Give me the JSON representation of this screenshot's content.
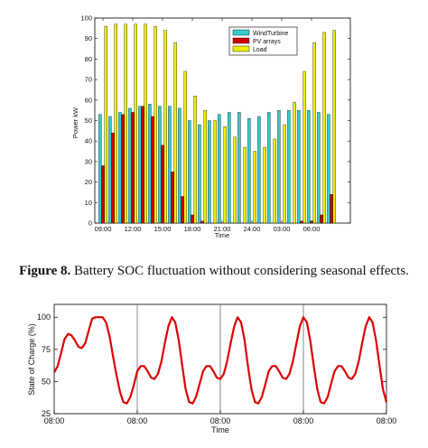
{
  "caption": {
    "label": "Figure  8.",
    "text": " Battery SOC fluctuation without considering seasonal effects."
  },
  "chart_data": [
    {
      "type": "bar",
      "title": "",
      "xlabel": "Time",
      "ylabel": "Power   kW",
      "ylim": [
        0,
        100
      ],
      "yticks": [
        0,
        10,
        20,
        30,
        40,
        50,
        60,
        70,
        80,
        90,
        100
      ],
      "xtick_labels": [
        "09:00",
        "12:00",
        "15:00",
        "18:00",
        "21:00",
        "24:00",
        "03:00",
        "06:00"
      ],
      "xtick_hours": [
        0,
        3,
        6,
        9,
        12,
        15,
        18,
        21
      ],
      "grid": false,
      "legend": "top-right",
      "colors": {
        "wind": "#33cccc",
        "pv": "#cc0000",
        "load": "#eeee00"
      },
      "series": [
        {
          "name": "WindTurbine",
          "values": [
            53,
            52,
            54,
            56,
            57,
            58,
            57,
            57,
            56,
            50,
            48,
            50,
            53,
            54,
            54,
            51,
            52,
            54,
            55,
            55,
            55,
            55,
            54,
            53
          ]
        },
        {
          "name": "PV arrays",
          "values": [
            28,
            44,
            53,
            54,
            57,
            52,
            38,
            25,
            13,
            4,
            1,
            0,
            0,
            0,
            0,
            0,
            0,
            0,
            0,
            0,
            1,
            1,
            4,
            14
          ]
        },
        {
          "name": "Load",
          "values": [
            96,
            97,
            97,
            97,
            97,
            96,
            94,
            88,
            74,
            62,
            55,
            50,
            47,
            42,
            37,
            35,
            37,
            41,
            48,
            59,
            74,
            88,
            93,
            94
          ]
        }
      ]
    },
    {
      "type": "line",
      "title": "",
      "xlabel": "Time",
      "ylabel": "State of Charge (%)",
      "ylim": [
        25,
        110
      ],
      "yticks": [
        25,
        50,
        75,
        100
      ],
      "xtick_labels": [
        "08:00",
        "08:00",
        "08:00",
        "08:00",
        "08:00"
      ],
      "xtick_days": [
        0,
        1,
        2,
        3,
        4
      ],
      "grid": false,
      "color": "#dd0000",
      "x_days": [
        0,
        0.042,
        0.083,
        0.125,
        0.167,
        0.208,
        0.25,
        0.292,
        0.333,
        0.375,
        0.417,
        0.458,
        0.5,
        0.542,
        0.583,
        0.625,
        0.667,
        0.708,
        0.75,
        0.792,
        0.833,
        0.875,
        0.917,
        0.958,
        1.0,
        1.042,
        1.083,
        1.125,
        1.167,
        1.208,
        1.25,
        1.292,
        1.333,
        1.375,
        1.417,
        1.458,
        1.5,
        1.542,
        1.583,
        1.625,
        1.667,
        1.708,
        1.75,
        1.792,
        1.833,
        1.875,
        1.917,
        1.958,
        2.0,
        2.042,
        2.083,
        2.125,
        2.167,
        2.208,
        2.25,
        2.292,
        2.333,
        2.375,
        2.417,
        2.458,
        2.5,
        2.542,
        2.583,
        2.625,
        2.667,
        2.708,
        2.75,
        2.792,
        2.833,
        2.875,
        2.917,
        2.958,
        3.0,
        3.042,
        3.083,
        3.125,
        3.167,
        3.208,
        3.25,
        3.292,
        3.333,
        3.375,
        3.417,
        3.458,
        3.5,
        3.542,
        3.583,
        3.625,
        3.667,
        3.708,
        3.75,
        3.792,
        3.833,
        3.875,
        3.917,
        3.958,
        4.0
      ],
      "values": [
        57,
        62,
        72,
        83,
        87,
        86,
        82,
        77,
        76,
        80,
        90,
        99,
        100,
        100,
        100,
        96,
        85,
        70,
        55,
        42,
        34,
        33,
        38,
        47,
        58,
        62,
        62,
        58,
        53,
        52,
        56,
        66,
        80,
        93,
        100,
        96,
        82,
        62,
        44,
        34,
        33,
        38,
        48,
        58,
        62,
        62,
        58,
        53,
        52,
        56,
        66,
        80,
        93,
        100,
        96,
        82,
        62,
        44,
        34,
        33,
        38,
        48,
        58,
        62,
        62,
        58,
        53,
        52,
        56,
        66,
        80,
        93,
        100,
        96,
        82,
        62,
        44,
        34,
        33,
        38,
        48,
        58,
        62,
        62,
        58,
        53,
        52,
        56,
        66,
        80,
        93,
        100,
        96,
        82,
        62,
        44,
        34
      ]
    }
  ]
}
